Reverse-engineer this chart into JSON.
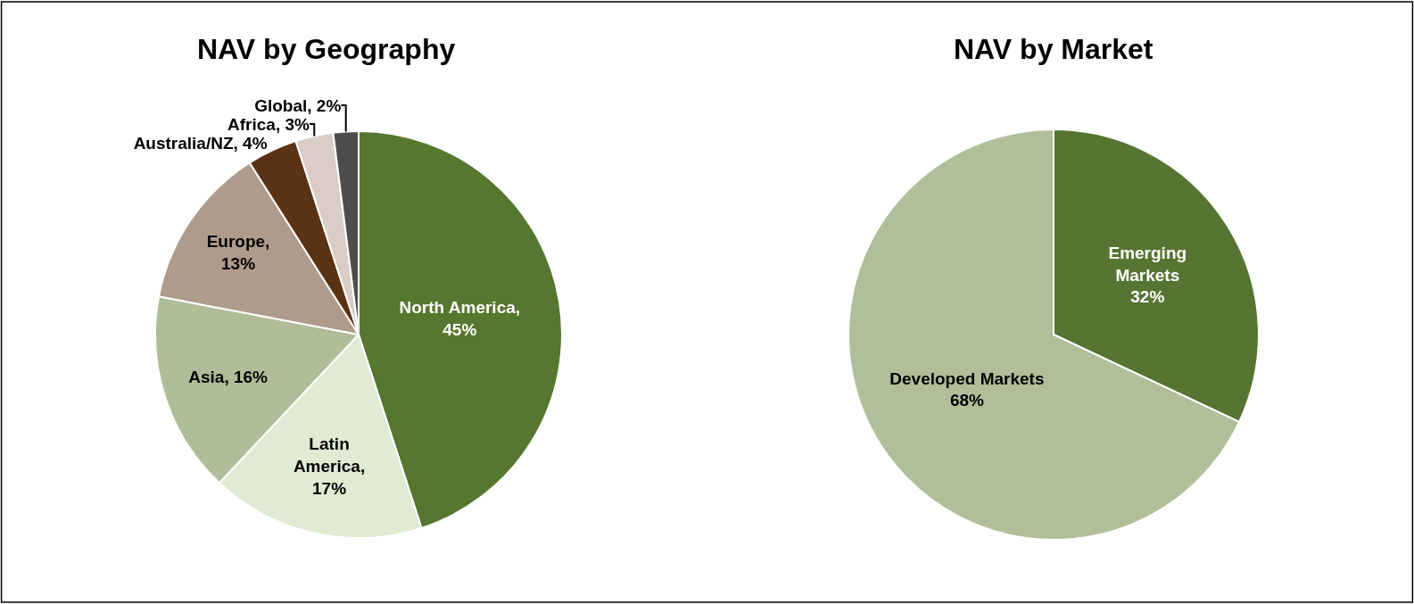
{
  "chart_data": [
    {
      "type": "pie",
      "title": "NAV by Geography",
      "categories": [
        "North America",
        "Latin\nAmerica",
        "Asia",
        "Europe",
        "Australia/NZ",
        "Africa",
        "Global"
      ],
      "values": [
        45,
        17,
        16,
        13,
        4,
        3,
        2
      ],
      "colors": [
        "#55772f",
        "#e1ead2",
        "#b0bd99",
        "#ae9b8b",
        "#5a3214",
        "#d9cdc5",
        "#4d4d4d"
      ],
      "value_labels": [
        ",\n45%",
        ",\n17%",
        ", 16%",
        ",\n13%",
        ", 4%",
        ", 3%",
        ", 2%"
      ]
    },
    {
      "type": "pie",
      "title": "NAV by Market",
      "categories": [
        "Emerging\nMarkets",
        "Developed Markets"
      ],
      "values": [
        32,
        68
      ],
      "colors": [
        "#567532",
        "#b1be9a"
      ],
      "value_labels": [
        "\n32%",
        "\n68%"
      ]
    }
  ]
}
